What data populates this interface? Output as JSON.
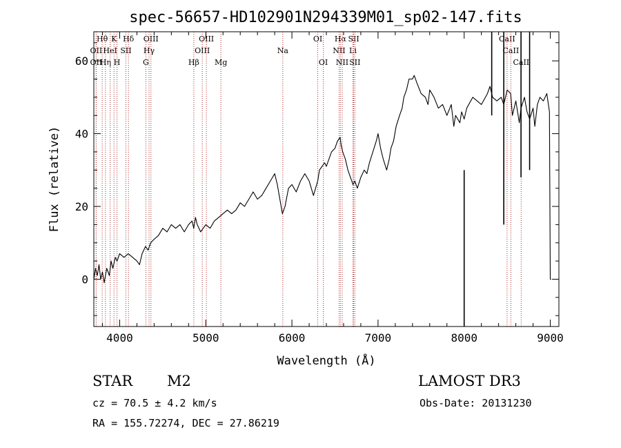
{
  "chart_data": {
    "type": "line",
    "title": "spec-56657-HD102901N294339M01_sp02-147.fits",
    "xlabel": "Wavelength (Å)",
    "ylabel": "Flux (relative)",
    "xlim": [
      3700,
      9100
    ],
    "ylim": [
      -13,
      68
    ],
    "x_ticks": [
      4000,
      5000,
      6000,
      7000,
      8000,
      9000
    ],
    "y_ticks": [
      0,
      20,
      40,
      60
    ],
    "x_tick_labels": [
      "4000",
      "5000",
      "6000",
      "7000",
      "8000",
      "9000"
    ],
    "y_tick_labels": [
      "0",
      "20",
      "40",
      "60"
    ],
    "grid": false,
    "series": [
      {
        "name": "flux",
        "x": [
          3700,
          3720,
          3740,
          3760,
          3780,
          3800,
          3820,
          3850,
          3880,
          3900,
          3920,
          3950,
          3970,
          4000,
          4050,
          4100,
          4150,
          4200,
          4230,
          4260,
          4300,
          4330,
          4360,
          4400,
          4450,
          4500,
          4550,
          4600,
          4650,
          4700,
          4750,
          4800,
          4840,
          4860,
          4880,
          4900,
          4940,
          4970,
          5000,
          5050,
          5100,
          5150,
          5200,
          5250,
          5300,
          5350,
          5400,
          5450,
          5500,
          5550,
          5600,
          5650,
          5700,
          5750,
          5800,
          5830,
          5860,
          5890,
          5920,
          5960,
          6000,
          6050,
          6100,
          6150,
          6200,
          6250,
          6300,
          6320,
          6350,
          6380,
          6400,
          6430,
          6460,
          6500,
          6530,
          6560,
          6570,
          6590,
          6620,
          6650,
          6680,
          6710,
          6730,
          6760,
          6800,
          6840,
          6870,
          6900,
          6940,
          6980,
          7000,
          7030,
          7060,
          7100,
          7130,
          7150,
          7180,
          7210,
          7250,
          7280,
          7300,
          7330,
          7360,
          7400,
          7420,
          7450,
          7500,
          7550,
          7580,
          7600,
          7650,
          7700,
          7750,
          7800,
          7850,
          7880,
          7900,
          7950,
          7970,
          8000,
          8030,
          8100,
          8200,
          8270,
          8300,
          8330,
          8380,
          8430,
          8460,
          8500,
          8540,
          8560,
          8600,
          8640,
          8660,
          8700,
          8730,
          8760,
          8800,
          8820,
          8850,
          8880,
          8920,
          8960,
          8990,
          9000,
          9010
        ],
        "y": [
          0,
          3,
          1,
          4,
          0,
          2,
          -1,
          3,
          1,
          5,
          3,
          6,
          5,
          7,
          6,
          7,
          6,
          5,
          4,
          7,
          9,
          8,
          10,
          11,
          12,
          14,
          13,
          15,
          14,
          15,
          13,
          15,
          16,
          14,
          17,
          15,
          13,
          14,
          15,
          14,
          16,
          17,
          18,
          19,
          18,
          19,
          21,
          20,
          22,
          24,
          22,
          23,
          25,
          27,
          29,
          26,
          22,
          18,
          20,
          25,
          26,
          24,
          27,
          29,
          27,
          23,
          27,
          30,
          31,
          32,
          31,
          33,
          35,
          36,
          38,
          39,
          37,
          35,
          33,
          30,
          28,
          26,
          27,
          25,
          28,
          30,
          29,
          32,
          35,
          38,
          40,
          36,
          33,
          30,
          33,
          36,
          38,
          42,
          45,
          47,
          50,
          52,
          55,
          55,
          56,
          54,
          51,
          50,
          48,
          52,
          50,
          47,
          48,
          45,
          48,
          42,
          45,
          43,
          46,
          44,
          47,
          50,
          48,
          51,
          53,
          50,
          49,
          50,
          48,
          52,
          51,
          45,
          49,
          43,
          47,
          50,
          46,
          44,
          47,
          42,
          48,
          50,
          49,
          51,
          46,
          0,
          0
        ]
      }
    ],
    "spike_lines": [
      {
        "x": 8000,
        "y": [
          -13,
          30
        ]
      },
      {
        "x": 8460,
        "y": [
          15,
          68
        ]
      },
      {
        "x": 8660,
        "y": [
          28,
          68
        ]
      },
      {
        "x": 8760,
        "y": [
          30,
          68
        ]
      },
      {
        "x": 8320,
        "y": [
          45,
          68
        ]
      }
    ],
    "line_markers": [
      {
        "x": 3797,
        "label": "Hθ",
        "row": 0
      },
      {
        "x": 3727,
        "label": "OII",
        "row": 1
      },
      {
        "x": 3727,
        "label": "OII",
        "row": 2
      },
      {
        "x": 3835,
        "label": "Hη",
        "row": 2
      },
      {
        "x": 3889,
        "label": "HeI",
        "row": 1
      },
      {
        "x": 3934,
        "label": "K",
        "row": 0
      },
      {
        "x": 3969,
        "label": "H",
        "row": 2
      },
      {
        "x": 4072,
        "label": "SII",
        "row": 1
      },
      {
        "x": 4102,
        "label": "Hδ",
        "row": 0
      },
      {
        "x": 4304,
        "label": "G",
        "row": 2
      },
      {
        "x": 4341,
        "label": "Hγ",
        "row": 1
      },
      {
        "x": 4363,
        "label": "OIII",
        "row": 0
      },
      {
        "x": 4861,
        "label": "Hβ",
        "row": 2
      },
      {
        "x": 4959,
        "label": "OIII",
        "row": 1
      },
      {
        "x": 5007,
        "label": "OIII",
        "row": 0
      },
      {
        "x": 5175,
        "label": "Mg",
        "row": 2
      },
      {
        "x": 5894,
        "label": "Na",
        "row": 1
      },
      {
        "x": 6300,
        "label": "OI",
        "row": 0
      },
      {
        "x": 6364,
        "label": "OI",
        "row": 2
      },
      {
        "x": 6548,
        "label": "NII",
        "row": 1
      },
      {
        "x": 6563,
        "label": "Hα",
        "row": 0
      },
      {
        "x": 6584,
        "label": "NII",
        "row": 2
      },
      {
        "x": 6708,
        "label": "Li",
        "row": 1
      },
      {
        "x": 6717,
        "label": "SII",
        "row": 0
      },
      {
        "x": 6731,
        "label": "SII",
        "row": 2
      },
      {
        "x": 8498,
        "label": "CaII",
        "row": 0
      },
      {
        "x": 8542,
        "label": "CaII",
        "row": 1
      },
      {
        "x": 8662,
        "label": "CaII",
        "row": 2
      }
    ]
  },
  "info": {
    "object_class": "STAR",
    "subclass": "M2",
    "survey": "LAMOST DR3",
    "redshift": "cz = 70.5 ± 4.2 km/s",
    "obs_date": "Obs-Date: 20131230",
    "coords": "RA = 155.72274, DEC =  27.86219"
  },
  "colors": {
    "marker_line": "#b22222",
    "spectrum": "#000000",
    "axis": "#000000"
  }
}
